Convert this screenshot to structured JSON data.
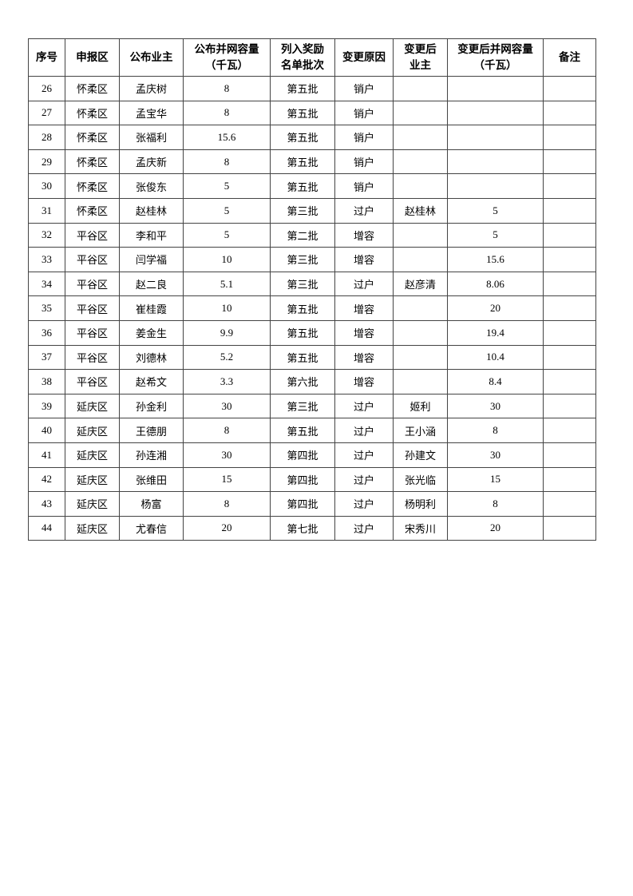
{
  "table": {
    "header": [
      [
        "序号"
      ],
      [
        "申报区"
      ],
      [
        "公布业主"
      ],
      [
        "公布并网容量",
        "（千瓦）"
      ],
      [
        "列入奖励",
        "名单批次"
      ],
      [
        "变更原因"
      ],
      [
        "变更后",
        "业主"
      ],
      [
        "变更后并网容量",
        "（千瓦）"
      ],
      [
        "备注"
      ]
    ],
    "rows": [
      [
        "26",
        "怀柔区",
        "孟庆树",
        "8",
        "第五批",
        "销户",
        null,
        null,
        null
      ],
      [
        "27",
        "怀柔区",
        "孟宝华",
        "8",
        "第五批",
        "销户",
        null,
        null,
        null
      ],
      [
        "28",
        "怀柔区",
        "张福利",
        "15.6",
        "第五批",
        "销户",
        null,
        null,
        null
      ],
      [
        "29",
        "怀柔区",
        "孟庆新",
        "8",
        "第五批",
        "销户",
        null,
        null,
        null
      ],
      [
        "30",
        "怀柔区",
        "张俊东",
        "5",
        "第五批",
        "销户",
        null,
        null,
        null
      ],
      [
        "31",
        "怀柔区",
        "赵桂林",
        "5",
        "第三批",
        "过户",
        "赵桂林",
        "5",
        null
      ],
      [
        "32",
        "平谷区",
        "李和平",
        "5",
        "第二批",
        "增容",
        null,
        "5",
        null
      ],
      [
        "33",
        "平谷区",
        "闫学福",
        "10",
        "第三批",
        "增容",
        null,
        "15.6",
        null
      ],
      [
        "34",
        "平谷区",
        "赵二良",
        "5.1",
        "第三批",
        "过户",
        "赵彦清",
        "8.06",
        null
      ],
      [
        "35",
        "平谷区",
        "崔桂霞",
        "10",
        "第五批",
        "增容",
        null,
        "20",
        null
      ],
      [
        "36",
        "平谷区",
        "姜金生",
        "9.9",
        "第五批",
        "增容",
        null,
        "19.4",
        null
      ],
      [
        "37",
        "平谷区",
        "刘德林",
        "5.2",
        "第五批",
        "增容",
        null,
        "10.4",
        null
      ],
      [
        "38",
        "平谷区",
        "赵希文",
        "3.3",
        "第六批",
        "增容",
        null,
        "8.4",
        null
      ],
      [
        "39",
        "延庆区",
        "孙金利",
        "30",
        "第三批",
        "过户",
        "姬利",
        "30",
        null
      ],
      [
        "40",
        "延庆区",
        "王德朋",
        "8",
        "第五批",
        "过户",
        "王小涵",
        "8",
        null
      ],
      [
        "41",
        "延庆区",
        "孙连湘",
        "30",
        "第四批",
        "过户",
        "孙建文",
        "30",
        null
      ],
      [
        "42",
        "延庆区",
        "张维田",
        "15",
        "第四批",
        "过户",
        "张光临",
        "15",
        null
      ],
      [
        "43",
        "延庆区",
        "杨富",
        "8",
        "第四批",
        "过户",
        "杨明利",
        "8",
        null
      ],
      [
        "44",
        "延庆区",
        "尤春信",
        "20",
        "第七批",
        "过户",
        "宋秀川",
        "20",
        null
      ]
    ]
  }
}
